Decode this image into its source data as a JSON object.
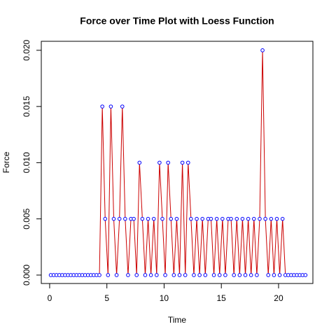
{
  "chart_data": {
    "type": "line",
    "title": "Force over Time Plot with Loess Function",
    "x_label": "Time",
    "y_label": "Force",
    "line_color": "#cc0000",
    "point_color": "#0000ff",
    "xlim": [
      -0.73,
      23.0
    ],
    "ylim": [
      -0.00075,
      0.0208
    ],
    "xticks": [
      0,
      5,
      10,
      15,
      20
    ],
    "yticks": [
      {
        "value": 0,
        "label": "0.000"
      },
      0.005,
      {
        "value": 0.01,
        "label": "0.010"
      },
      0.015,
      {
        "value": 0.02,
        "label": "0.020"
      }
    ],
    "x": [
      0.1,
      0.35,
      0.6,
      0.85,
      1.1,
      1.35,
      1.6,
      1.85,
      2.1,
      2.35,
      2.6,
      2.85,
      3.1,
      3.35,
      3.6,
      3.85,
      4.1,
      4.35,
      4.6,
      4.85,
      5.1,
      5.35,
      5.6,
      5.85,
      6.1,
      6.35,
      6.6,
      6.85,
      7.1,
      7.35,
      7.6,
      7.85,
      8.1,
      8.35,
      8.6,
      8.85,
      9.1,
      9.35,
      9.6,
      9.85,
      10.1,
      10.35,
      10.6,
      10.85,
      11.1,
      11.35,
      11.6,
      11.85,
      12.1,
      12.35,
      12.6,
      12.85,
      13.1,
      13.35,
      13.6,
      13.85,
      14.1,
      14.35,
      14.6,
      14.85,
      15.1,
      15.35,
      15.6,
      15.85,
      16.1,
      16.35,
      16.6,
      16.85,
      17.1,
      17.35,
      17.6,
      17.85,
      18.1,
      18.35,
      18.6,
      18.85,
      19.1,
      19.35,
      19.6,
      19.85,
      20.1,
      20.35,
      20.6,
      20.85,
      21.1,
      21.35,
      21.6,
      21.85,
      22.1,
      22.35
    ],
    "values": [
      0,
      0,
      0,
      0,
      0,
      0,
      0,
      0,
      0,
      0,
      0,
      0,
      0,
      0,
      0,
      0,
      0,
      0,
      0.015,
      0.005,
      0,
      0.015,
      0.005,
      0,
      0.005,
      0.015,
      0.005,
      0,
      0.005,
      0.005,
      0,
      0.01,
      0.005,
      0,
      0.005,
      0,
      0.005,
      0,
      0.01,
      0.005,
      0,
      0.01,
      0.005,
      0,
      0.005,
      0,
      0.01,
      0,
      0.01,
      0.005,
      0,
      0.005,
      0,
      0.005,
      0,
      0.005,
      0.005,
      0,
      0.005,
      0,
      0.005,
      0,
      0.005,
      0.005,
      0,
      0.005,
      0,
      0.005,
      0,
      0.005,
      0,
      0.005,
      0,
      0.005,
      0.02,
      0.005,
      0,
      0.005,
      0,
      0.005,
      0,
      0.005,
      0,
      0,
      0,
      0,
      0,
      0,
      0,
      0
    ]
  }
}
